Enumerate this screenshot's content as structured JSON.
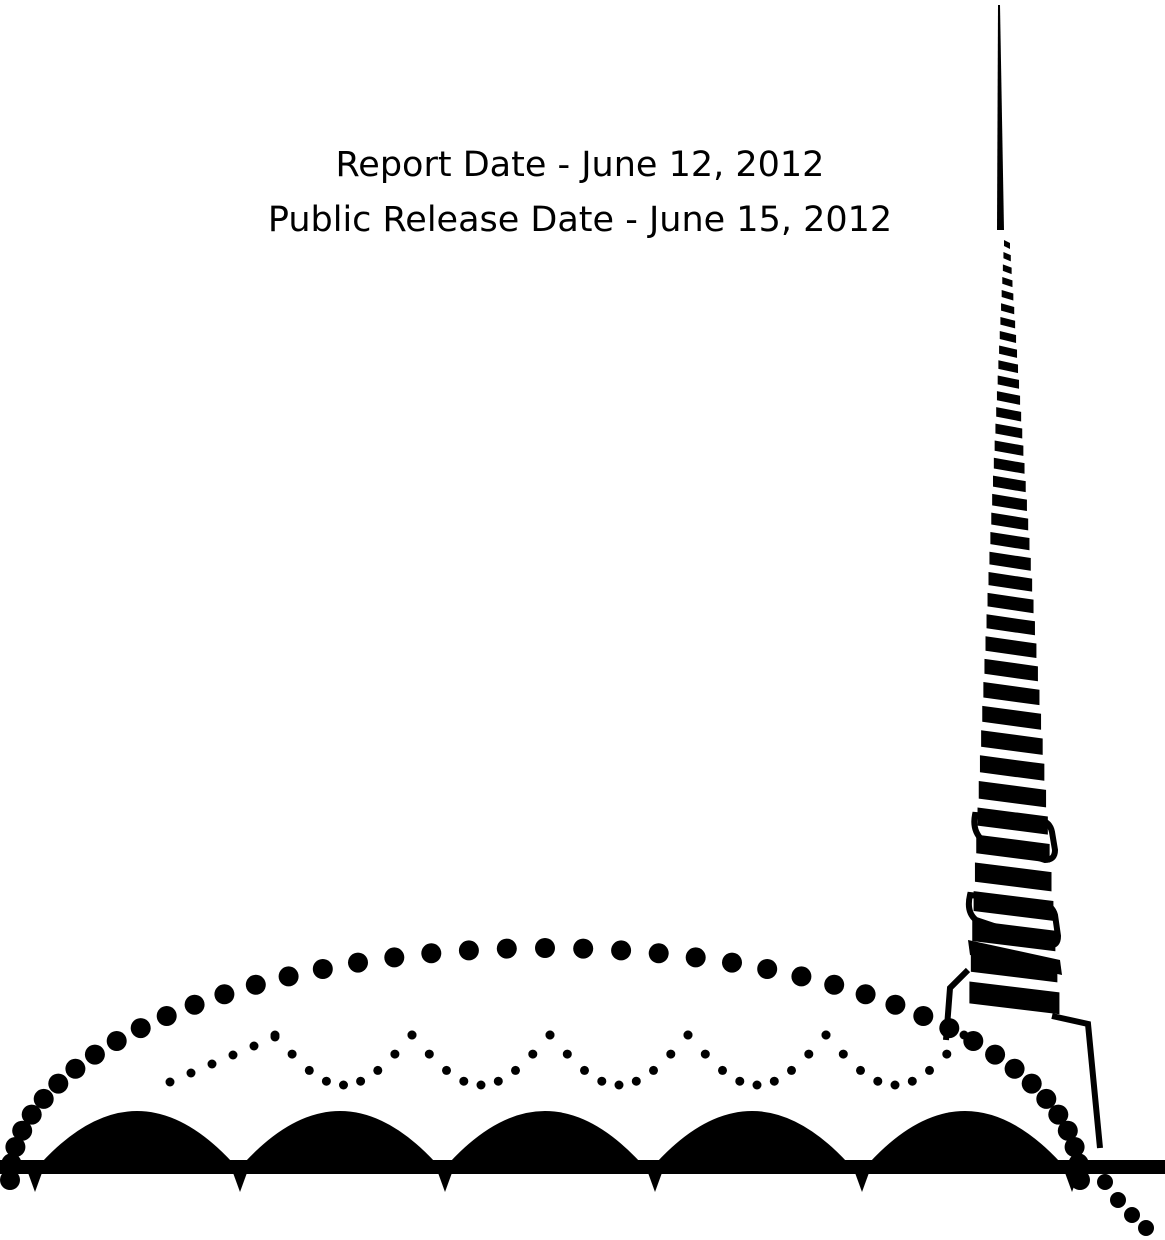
{
  "report": {
    "report_date": "Report Date - June 12, 2012",
    "public_release_date": "Public Release Date - June 15, 2012"
  },
  "colors": {
    "ink": "#000000",
    "paper": "#ffffff"
  }
}
